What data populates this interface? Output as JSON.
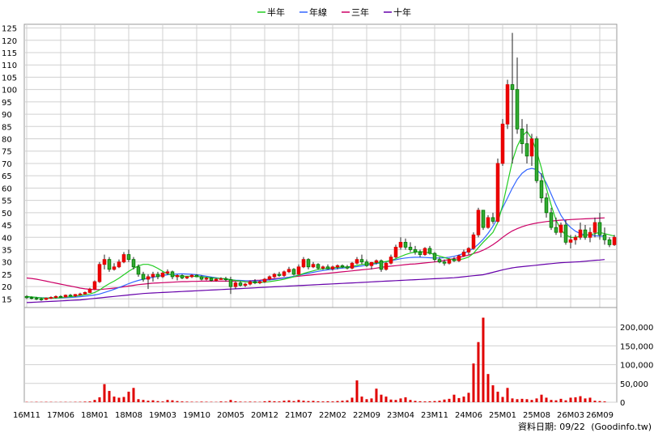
{
  "chart_data": {
    "type": "candlestick-with-volume",
    "legend": [
      {
        "label": "半年",
        "color": "#22cc22"
      },
      {
        "label": "年線",
        "color": "#3366ff"
      },
      {
        "label": "三年",
        "color": "#cc0066"
      },
      {
        "label": "十年",
        "color": "#6600aa"
      }
    ],
    "price_axis": {
      "min": 15,
      "max": 125,
      "step": 5
    },
    "price_ticks": [
      "15",
      "20",
      "25",
      "30",
      "35",
      "40",
      "45",
      "50",
      "55",
      "60",
      "65",
      "70",
      "75",
      "80",
      "85",
      "90",
      "95",
      "100",
      "105",
      "110",
      "115",
      "120",
      "125"
    ],
    "volume_axis": {
      "min": 0,
      "max": 225000
    },
    "volume_ticks": [
      "0",
      "50,000",
      "100,000",
      "150,000",
      "200,000"
    ],
    "x_labels": [
      "16M11",
      "17M06",
      "18M01",
      "18M08",
      "19M03",
      "19M10",
      "20M05",
      "20M12",
      "21M07",
      "22M02",
      "22M09",
      "23M04",
      "23M11",
      "24M06",
      "25M01",
      "25M08",
      "26M03",
      "26M09"
    ],
    "x_label_index": [
      0,
      7,
      14,
      21,
      28,
      35,
      42,
      49,
      56,
      63,
      70,
      77,
      84,
      91,
      98,
      105,
      112,
      118
    ],
    "candles": [
      [
        16,
        16.5,
        15,
        15.5
      ],
      [
        15.5,
        16,
        14.8,
        15.2
      ],
      [
        15.2,
        15.8,
        14.5,
        15
      ],
      [
        15,
        15.5,
        14.2,
        14.8
      ],
      [
        14.8,
        15.6,
        14.5,
        15.3
      ],
      [
        15.3,
        16,
        15,
        15.6
      ],
      [
        15.6,
        16.4,
        15.2,
        16
      ],
      [
        16,
        16.5,
        15.5,
        15.8
      ],
      [
        15.8,
        16.8,
        15.6,
        16.5
      ],
      [
        16.5,
        17,
        16,
        16.2
      ],
      [
        16.2,
        17,
        15.8,
        16.8
      ],
      [
        16.8,
        17.5,
        16.4,
        17
      ],
      [
        17,
        18,
        16.8,
        17.6
      ],
      [
        17.6,
        19.5,
        17.4,
        19
      ],
      [
        19,
        22.5,
        18.8,
        22
      ],
      [
        22,
        30,
        21.5,
        29
      ],
      [
        29,
        33,
        27,
        31
      ],
      [
        31,
        32,
        26,
        27
      ],
      [
        27,
        29.5,
        26.5,
        28
      ],
      [
        28,
        31,
        27.5,
        30
      ],
      [
        30,
        34,
        29.5,
        33
      ],
      [
        33,
        35,
        30,
        31
      ],
      [
        31,
        32,
        27,
        28
      ],
      [
        28,
        29,
        24,
        25
      ],
      [
        25,
        26,
        22,
        23
      ],
      [
        23,
        25,
        19,
        24
      ],
      [
        24,
        26,
        22,
        25
      ],
      [
        25,
        26,
        23,
        24
      ],
      [
        24,
        26,
        23.5,
        25.5
      ],
      [
        25.5,
        27,
        24.8,
        26
      ],
      [
        26,
        26.5,
        23,
        24
      ],
      [
        24,
        25,
        22.5,
        24.5
      ],
      [
        24.5,
        25,
        23,
        23.5
      ],
      [
        23.5,
        24.2,
        23,
        24
      ],
      [
        24,
        25,
        23.5,
        24.6
      ],
      [
        24.6,
        25,
        23.8,
        24
      ],
      [
        24,
        24.5,
        22.5,
        23
      ],
      [
        23,
        24,
        22.5,
        23.4
      ],
      [
        23.4,
        23.8,
        22,
        22.5
      ],
      [
        22.5,
        23.5,
        22,
        23
      ],
      [
        23,
        23.8,
        22.8,
        23.2
      ],
      [
        23.2,
        24,
        22,
        22.8
      ],
      [
        22.8,
        24,
        17,
        20
      ],
      [
        20,
        22,
        19,
        21.5
      ],
      [
        21.5,
        22.2,
        20,
        20.5
      ],
      [
        20.5,
        21.5,
        19.8,
        21
      ],
      [
        21,
        22.5,
        20.5,
        22
      ],
      [
        22,
        23,
        21,
        21.5
      ],
      [
        21.5,
        22.5,
        21,
        22
      ],
      [
        22,
        23.5,
        21.5,
        23
      ],
      [
        23,
        24.5,
        22.5,
        24
      ],
      [
        24,
        25.5,
        23.5,
        25
      ],
      [
        25,
        26,
        24,
        24.5
      ],
      [
        24.5,
        26.5,
        24,
        26
      ],
      [
        26,
        28,
        25.5,
        27
      ],
      [
        27,
        27.5,
        24.5,
        25
      ],
      [
        25,
        29,
        24.8,
        28
      ],
      [
        28,
        32,
        27.5,
        31
      ],
      [
        31,
        31.5,
        27,
        28
      ],
      [
        28,
        30,
        27.5,
        29
      ],
      [
        29,
        29.5,
        27,
        27.5
      ],
      [
        27.5,
        28.5,
        26.8,
        28
      ],
      [
        28,
        29,
        27,
        27.2
      ],
      [
        27.2,
        28.5,
        26.5,
        28
      ],
      [
        28,
        29,
        27,
        28.5
      ],
      [
        28.5,
        29,
        27.5,
        28
      ],
      [
        28,
        28.8,
        27,
        27.5
      ],
      [
        27.5,
        30,
        27,
        29.5
      ],
      [
        29.5,
        32,
        29,
        31
      ],
      [
        31,
        33,
        29,
        30
      ],
      [
        30,
        31,
        28,
        28.5
      ],
      [
        28.5,
        30,
        27,
        29.8
      ],
      [
        29.8,
        31,
        29,
        30.5
      ],
      [
        30.5,
        31,
        26,
        27
      ],
      [
        27,
        30,
        26.5,
        29.5
      ],
      [
        29.5,
        33,
        29,
        32
      ],
      [
        32,
        37,
        31.5,
        36
      ],
      [
        36,
        40,
        35,
        38
      ],
      [
        38,
        39.5,
        35,
        36
      ],
      [
        36,
        38,
        34,
        35
      ],
      [
        35,
        36.5,
        33,
        34
      ],
      [
        34,
        35,
        32,
        33
      ],
      [
        33,
        36,
        32.5,
        35.5
      ],
      [
        35.5,
        36.5,
        33,
        33.5
      ],
      [
        33.5,
        34,
        30,
        31
      ],
      [
        31,
        32,
        29.5,
        30
      ],
      [
        30,
        31,
        28.5,
        29.5
      ],
      [
        29.5,
        31.5,
        29,
        31
      ],
      [
        31,
        32,
        30,
        30.5
      ],
      [
        30.5,
        33,
        30,
        32.5
      ],
      [
        32.5,
        35,
        32,
        34
      ],
      [
        34,
        36,
        33,
        35.5
      ],
      [
        35.5,
        42,
        35,
        41
      ],
      [
        41,
        52,
        40,
        51
      ],
      [
        51,
        50.5,
        43,
        44
      ],
      [
        44,
        49,
        43.5,
        48
      ],
      [
        48,
        50,
        45.5,
        46.5
      ],
      [
        46.5,
        72,
        46,
        70
      ],
      [
        70,
        88,
        69,
        86
      ],
      [
        86,
        104,
        84,
        102
      ],
      [
        102,
        123,
        70,
        100
      ],
      [
        100,
        113,
        82,
        84
      ],
      [
        84,
        88,
        74,
        78
      ],
      [
        78,
        86,
        70,
        73
      ],
      [
        73,
        82,
        69,
        80
      ],
      [
        80,
        81,
        62,
        63
      ],
      [
        63,
        66,
        54,
        56
      ],
      [
        56,
        58,
        48,
        50
      ],
      [
        50,
        52,
        43,
        44
      ],
      [
        44,
        48,
        41,
        42
      ],
      [
        42,
        46,
        40,
        45
      ],
      [
        45,
        47,
        37,
        38
      ],
      [
        38,
        41,
        35.5,
        39
      ],
      [
        39,
        41,
        37,
        40
      ],
      [
        40,
        46,
        39,
        43
      ],
      [
        43,
        45,
        39,
        40
      ],
      [
        40,
        44,
        38,
        42
      ],
      [
        42,
        48,
        40,
        46
      ],
      [
        46,
        50,
        39,
        41
      ],
      [
        41,
        44,
        37,
        39
      ],
      [
        39,
        40,
        36,
        37
      ],
      [
        37,
        41,
        36.5,
        40
      ]
    ],
    "volumes": [
      800,
      600,
      900,
      700,
      900,
      800,
      600,
      700,
      800,
      600,
      900,
      1000,
      1500,
      2000,
      6000,
      13000,
      48000,
      30000,
      15000,
      12000,
      14000,
      28000,
      38000,
      8000,
      6000,
      4000,
      5000,
      3000,
      2000,
      6000,
      5000,
      3000,
      2000,
      1500,
      1200,
      1000,
      1500,
      1200,
      1000,
      800,
      2000,
      1500,
      6000,
      2500,
      1500,
      1200,
      1500,
      1300,
      1000,
      2500,
      3500,
      2500,
      2000,
      4000,
      5000,
      3000,
      6000,
      4000,
      3000,
      3500,
      2500,
      2000,
      2500,
      2000,
      3000,
      4000,
      5000,
      12000,
      58000,
      15000,
      8000,
      10000,
      36000,
      20000,
      15000,
      7000,
      6000,
      10000,
      13000,
      6000,
      3500,
      2500,
      2000,
      2500,
      3000,
      4000,
      7000,
      9000,
      20000,
      11000,
      15000,
      25000,
      103000,
      160000,
      225000,
      75000,
      45000,
      28000,
      14000,
      38000,
      10000,
      8000,
      9000,
      8000,
      6000,
      10000,
      20000,
      12000,
      6000,
      5000,
      9000,
      5000,
      12000,
      13000,
      16000,
      10000,
      12000,
      4000,
      3000,
      2000
    ],
    "ma_halfyear": [
      16,
      15.8,
      15.6,
      15.4,
      15.3,
      15.3,
      15.4,
      15.5,
      15.7,
      15.9,
      16.1,
      16.4,
      16.7,
      17,
      17.6,
      18.6,
      20,
      21.2,
      22.2,
      23.4,
      24.8,
      26.2,
      27.4,
      28.4,
      29,
      29,
      28.4,
      27.4,
      26.2,
      25.2,
      24.6,
      24.3,
      24.2,
      24.2,
      24.2,
      24.1,
      24,
      23.8,
      23.6,
      23.4,
      23.3,
      23.2,
      22.8,
      22.5,
      22.2,
      21.9,
      21.8,
      21.7,
      21.7,
      21.8,
      22,
      22.3,
      22.6,
      23,
      23.5,
      24,
      24.6,
      25.3,
      25.9,
      26.4,
      26.9,
      27.2,
      27.4,
      27.6,
      27.8,
      27.9,
      28,
      28.2,
      28.6,
      29,
      29.2,
      29.4,
      29.6,
      29.9,
      30.2,
      30.6,
      31.3,
      32.2,
      33,
      33.6,
      34,
      34.2,
      34,
      33.6,
      33,
      32.4,
      31.8,
      31.2,
      30.9,
      30.9,
      31.3,
      32,
      33.5,
      35.8,
      38,
      40,
      42,
      46,
      53,
      62,
      71,
      77,
      81,
      83,
      80,
      75,
      68,
      60,
      53,
      47,
      43,
      41,
      40,
      40,
      40.5,
      41,
      41,
      41.5,
      42,
      41.5,
      41,
      40.5
    ],
    "ma_year": [
      15.8,
      15.7,
      15.6,
      15.5,
      15.4,
      15.4,
      15.4,
      15.4,
      15.5,
      15.6,
      15.7,
      15.9,
      16.1,
      16.3,
      16.6,
      17,
      17.6,
      18.2,
      18.9,
      19.6,
      20.4,
      21.2,
      21.9,
      22.5,
      23,
      23.4,
      23.8,
      24.2,
      24.5,
      24.8,
      25,
      25.1,
      25.2,
      25.1,
      25,
      24.8,
      24.5,
      24.2,
      23.9,
      23.6,
      23.3,
      23,
      22.8,
      22.6,
      22.5,
      22.4,
      22.3,
      22.3,
      22.4,
      22.5,
      22.7,
      22.9,
      23.2,
      23.5,
      23.8,
      24.2,
      24.6,
      25,
      25.4,
      25.8,
      26.2,
      26.5,
      26.8,
      27,
      27.3,
      27.5,
      27.7,
      27.9,
      28.1,
      28.4,
      28.7,
      29,
      29.3,
      29.7,
      30.1,
      30.5,
      30.9,
      31.3,
      31.6,
      31.8,
      31.9,
      31.9,
      31.8,
      31.7,
      31.6,
      31.6,
      31.7,
      31.9,
      32.3,
      32.8,
      33.5,
      34.4,
      35.6,
      37.2,
      39.2,
      41.6,
      44.5,
      48,
      52,
      56,
      60,
      63.5,
      66,
      67.5,
      68,
      67.5,
      65.5,
      62,
      57.5,
      53,
      49,
      46,
      44,
      42.5,
      41.5,
      41,
      40.8,
      40.6,
      40.5,
      40.4
    ],
    "ma_3year": [
      23.5,
      23.3,
      23,
      22.6,
      22.2,
      21.8,
      21.4,
      21,
      20.6,
      20.2,
      19.8,
      19.4,
      19.1,
      18.9,
      18.8,
      18.8,
      19,
      19.2,
      19.4,
      19.6,
      19.9,
      20.2,
      20.5,
      20.8,
      21,
      21.2,
      21.4,
      21.5,
      21.6,
      21.7,
      21.8,
      21.9,
      22,
      22,
      22.1,
      22.1,
      22.2,
      22.2,
      22.2,
      22.2,
      22.2,
      22.2,
      22.2,
      22.2,
      22.2,
      22.3,
      22.4,
      22.5,
      22.6,
      22.8,
      23,
      23.2,
      23.4,
      23.6,
      23.8,
      24,
      24.2,
      24.4,
      24.6,
      24.8,
      25,
      25.2,
      25.4,
      25.6,
      25.8,
      26,
      26.2,
      26.4,
      26.6,
      26.8,
      27,
      27.2,
      27.5,
      27.8,
      28.1,
      28.3,
      28.5,
      28.7,
      28.9,
      29.1,
      29.2,
      29.4,
      29.6,
      29.8,
      30,
      30.3,
      30.6,
      31,
      31.4,
      31.8,
      32.3,
      32.8,
      33.4,
      34,
      34.8,
      35.8,
      37,
      38.4,
      40,
      41.4,
      42.6,
      43.5,
      44.3,
      44.9,
      45.4,
      45.8,
      46.1,
      46.4,
      46.6,
      46.8,
      47,
      47.1,
      47.2,
      47.3,
      47.4,
      47.5,
      47.6,
      47.7,
      47.8,
      47.9
    ],
    "ma_10year": [
      13.5,
      13.6,
      13.7,
      13.8,
      13.9,
      14,
      14.1,
      14.2,
      14.3,
      14.4,
      14.5,
      14.6,
      14.8,
      15,
      15.2,
      15.4,
      15.6,
      15.8,
      16,
      16.2,
      16.4,
      16.6,
      16.8,
      17,
      17.2,
      17.3,
      17.4,
      17.5,
      17.6,
      17.7,
      17.8,
      17.9,
      18,
      18.1,
      18.2,
      18.3,
      18.4,
      18.5,
      18.6,
      18.7,
      18.8,
      18.9,
      19,
      19.1,
      19.2,
      19.3,
      19.4,
      19.5,
      19.6,
      19.7,
      19.8,
      19.9,
      20,
      20.1,
      20.2,
      20.3,
      20.4,
      20.5,
      20.6,
      20.7,
      20.8,
      20.9,
      21,
      21.1,
      21.2,
      21.3,
      21.4,
      21.5,
      21.6,
      21.7,
      21.8,
      21.9,
      22,
      22.1,
      22.2,
      22.3,
      22.4,
      22.5,
      22.6,
      22.7,
      22.8,
      22.9,
      23,
      23.1,
      23.2,
      23.3,
      23.4,
      23.5,
      23.6,
      23.8,
      24,
      24.2,
      24.4,
      24.6,
      24.8,
      25.3,
      25.8,
      26.3,
      26.8,
      27.2,
      27.6,
      27.9,
      28.1,
      28.3,
      28.5,
      28.7,
      28.9,
      29.1,
      29.3,
      29.5,
      29.7,
      29.8,
      29.9,
      30,
      30.1,
      30.3,
      30.5,
      30.7,
      30.8,
      31
    ]
  },
  "footer": {
    "label": "資料日期: 09/22",
    "source": "(Goodinfo.tw)"
  }
}
